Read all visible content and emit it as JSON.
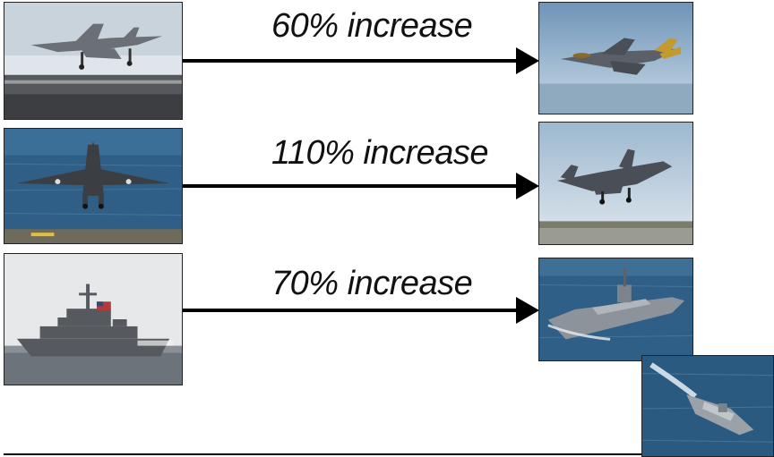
{
  "rows": [
    {
      "label": "60% increase",
      "left_photo": "fighter-jet-carrier-photo",
      "right_photo": "stealth-fighter-flight-photo"
    },
    {
      "label": "110% increase",
      "left_photo": "harrier-jet-hover-photo",
      "right_photo": "stealth-fighter-vertical-landing-photo"
    },
    {
      "label": "70% increase",
      "left_photo": "frigate-warship-photo",
      "right_photo": "littoral-combat-ship-photo"
    }
  ],
  "extra_photo": "trimaran-combat-ship-photo",
  "colors": {
    "arrow": "#000000",
    "sea": "#2f5f86",
    "sky": "#a9c6dc"
  }
}
